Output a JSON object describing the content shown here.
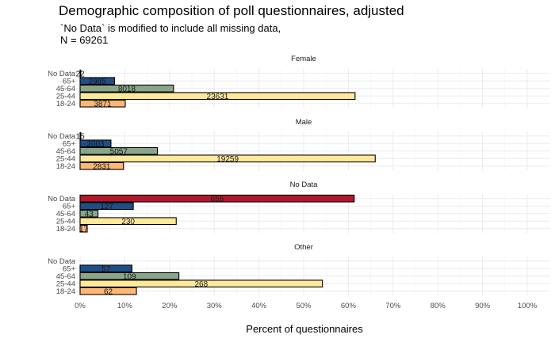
{
  "chart_data": {
    "type": "bar",
    "orientation": "horizontal",
    "title": "Demographic composition of poll questionnaires, adjusted",
    "subtitle_lines": [
      "`No Data` is modified to include all missing data,",
      "N = 69261"
    ],
    "xlabel": "Percent of questionnaires",
    "xlim": [
      0,
      100
    ],
    "x_ticks": [
      "0%",
      "10%",
      "20%",
      "30%",
      "40%",
      "50%",
      "60%",
      "70%",
      "80%",
      "90%",
      "100%"
    ],
    "grid": true,
    "categories": [
      "No Data",
      "65+",
      "45-64",
      "25-44",
      "18-24"
    ],
    "colors": {
      "No Data": "#b2182b",
      "65+": "#1f4e87",
      "45-64": "#8aa68a",
      "25-44": "#fee89a",
      "18-24": "#fdb877"
    },
    "panels": [
      {
        "name": "Female",
        "bars": [
          {
            "category": "No Data",
            "percent": 0.05,
            "count": "22"
          },
          {
            "category": "65+",
            "percent": 7.7,
            "count": "2985"
          },
          {
            "category": "45-64",
            "percent": 20.9,
            "count": "8018"
          },
          {
            "category": "25-44",
            "percent": 61.5,
            "count": "23631"
          },
          {
            "category": "18-24",
            "percent": 10.1,
            "count": "3871"
          }
        ]
      },
      {
        "name": "Male",
        "bars": [
          {
            "category": "No Data",
            "percent": 0.05,
            "count": "15"
          },
          {
            "category": "65+",
            "percent": 6.9,
            "count": "2003"
          },
          {
            "category": "45-64",
            "percent": 17.3,
            "count": "5057"
          },
          {
            "category": "25-44",
            "percent": 66.0,
            "count": "19259"
          },
          {
            "category": "18-24",
            "percent": 9.7,
            "count": "2831"
          }
        ]
      },
      {
        "name": "No Data",
        "bars": [
          {
            "category": "No Data",
            "percent": 61.3,
            "count": "655"
          },
          {
            "category": "65+",
            "percent": 11.9,
            "count": "127"
          },
          {
            "category": "45-64",
            "percent": 4.0,
            "count": "43"
          },
          {
            "category": "25-44",
            "percent": 21.5,
            "count": "230"
          },
          {
            "category": "18-24",
            "percent": 1.6,
            "count": "17"
          }
        ]
      },
      {
        "name": "Other",
        "bars": [
          {
            "category": "No Data",
            "percent": 0,
            "count": ""
          },
          {
            "category": "65+",
            "percent": 11.6,
            "count": "57"
          },
          {
            "category": "45-64",
            "percent": 22.1,
            "count": "109"
          },
          {
            "category": "25-44",
            "percent": 54.2,
            "count": "268"
          },
          {
            "category": "18-24",
            "percent": 12.6,
            "count": "62"
          }
        ]
      }
    ]
  }
}
